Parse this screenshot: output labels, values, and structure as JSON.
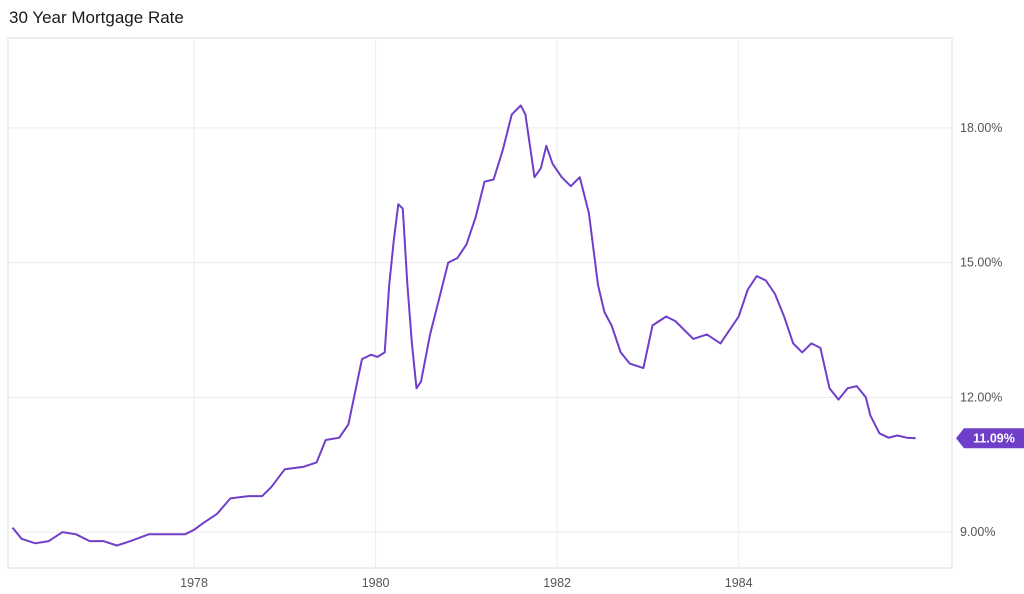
{
  "chart_data": {
    "type": "line",
    "title": "30 Year Mortgage Rate",
    "xlabel": "",
    "ylabel": "",
    "x_ticks": [
      "1978",
      "1980",
      "1982",
      "1984"
    ],
    "x_range": [
      1975.95,
      1986.35
    ],
    "y_ticks": [
      "9.00%",
      "12.00%",
      "15.00%",
      "18.00%"
    ],
    "y_tick_values": [
      9,
      12,
      15,
      18
    ],
    "ylim": [
      8.2,
      20.0
    ],
    "grid": true,
    "legend": "none",
    "line_color": "#6f3fc9",
    "last_value_label": "11.09%",
    "series": [
      {
        "x": [
          1976.0,
          1976.1,
          1976.25,
          1976.4,
          1976.55,
          1976.7,
          1976.85,
          1977.0,
          1977.15,
          1977.3,
          1977.5,
          1977.7,
          1977.9,
          1978.0,
          1978.1,
          1978.25,
          1978.4,
          1978.6,
          1978.75,
          1978.85,
          1979.0,
          1979.2,
          1979.35,
          1979.45,
          1979.6,
          1979.7,
          1979.85,
          1979.95,
          1980.02,
          1980.1,
          1980.15,
          1980.2,
          1980.25,
          1980.3,
          1980.35,
          1980.4,
          1980.45,
          1980.5,
          1980.6,
          1980.7,
          1980.8,
          1980.9,
          1981.0,
          1981.1,
          1981.2,
          1981.3,
          1981.4,
          1981.5,
          1981.6,
          1981.65,
          1981.75,
          1981.82,
          1981.88,
          1981.95,
          1982.05,
          1982.15,
          1982.25,
          1982.35,
          1982.45,
          1982.52,
          1982.6,
          1982.7,
          1982.8,
          1982.95,
          1983.05,
          1983.2,
          1983.3,
          1983.4,
          1983.5,
          1983.65,
          1983.8,
          1983.9,
          1984.0,
          1984.1,
          1984.2,
          1984.3,
          1984.4,
          1984.5,
          1984.6,
          1984.7,
          1984.8,
          1984.9,
          1985.0,
          1985.1,
          1985.2,
          1985.3,
          1985.4,
          1985.45,
          1985.55,
          1985.65,
          1985.75,
          1985.85,
          1985.95
        ],
        "y": [
          9.1,
          8.85,
          8.75,
          8.8,
          9.0,
          8.95,
          8.8,
          8.8,
          8.7,
          8.8,
          8.95,
          8.95,
          8.95,
          9.05,
          9.2,
          9.4,
          9.75,
          9.8,
          9.8,
          10.0,
          10.4,
          10.45,
          10.55,
          11.05,
          11.1,
          11.4,
          12.85,
          12.95,
          12.9,
          13.0,
          14.5,
          15.5,
          16.3,
          16.2,
          14.5,
          13.2,
          12.2,
          12.35,
          13.4,
          14.2,
          15.0,
          15.1,
          15.4,
          16.0,
          16.8,
          16.85,
          17.5,
          18.3,
          18.5,
          18.3,
          16.9,
          17.1,
          17.6,
          17.2,
          16.9,
          16.7,
          16.9,
          16.1,
          14.5,
          13.9,
          13.6,
          13.0,
          12.75,
          12.65,
          13.6,
          13.8,
          13.7,
          13.5,
          13.3,
          13.4,
          13.2,
          13.5,
          13.8,
          14.4,
          14.7,
          14.6,
          14.3,
          13.8,
          13.2,
          13.0,
          13.2,
          13.1,
          12.2,
          11.95,
          12.2,
          12.25,
          12.0,
          11.6,
          11.2,
          11.1,
          11.15,
          11.1,
          11.09
        ]
      }
    ]
  }
}
